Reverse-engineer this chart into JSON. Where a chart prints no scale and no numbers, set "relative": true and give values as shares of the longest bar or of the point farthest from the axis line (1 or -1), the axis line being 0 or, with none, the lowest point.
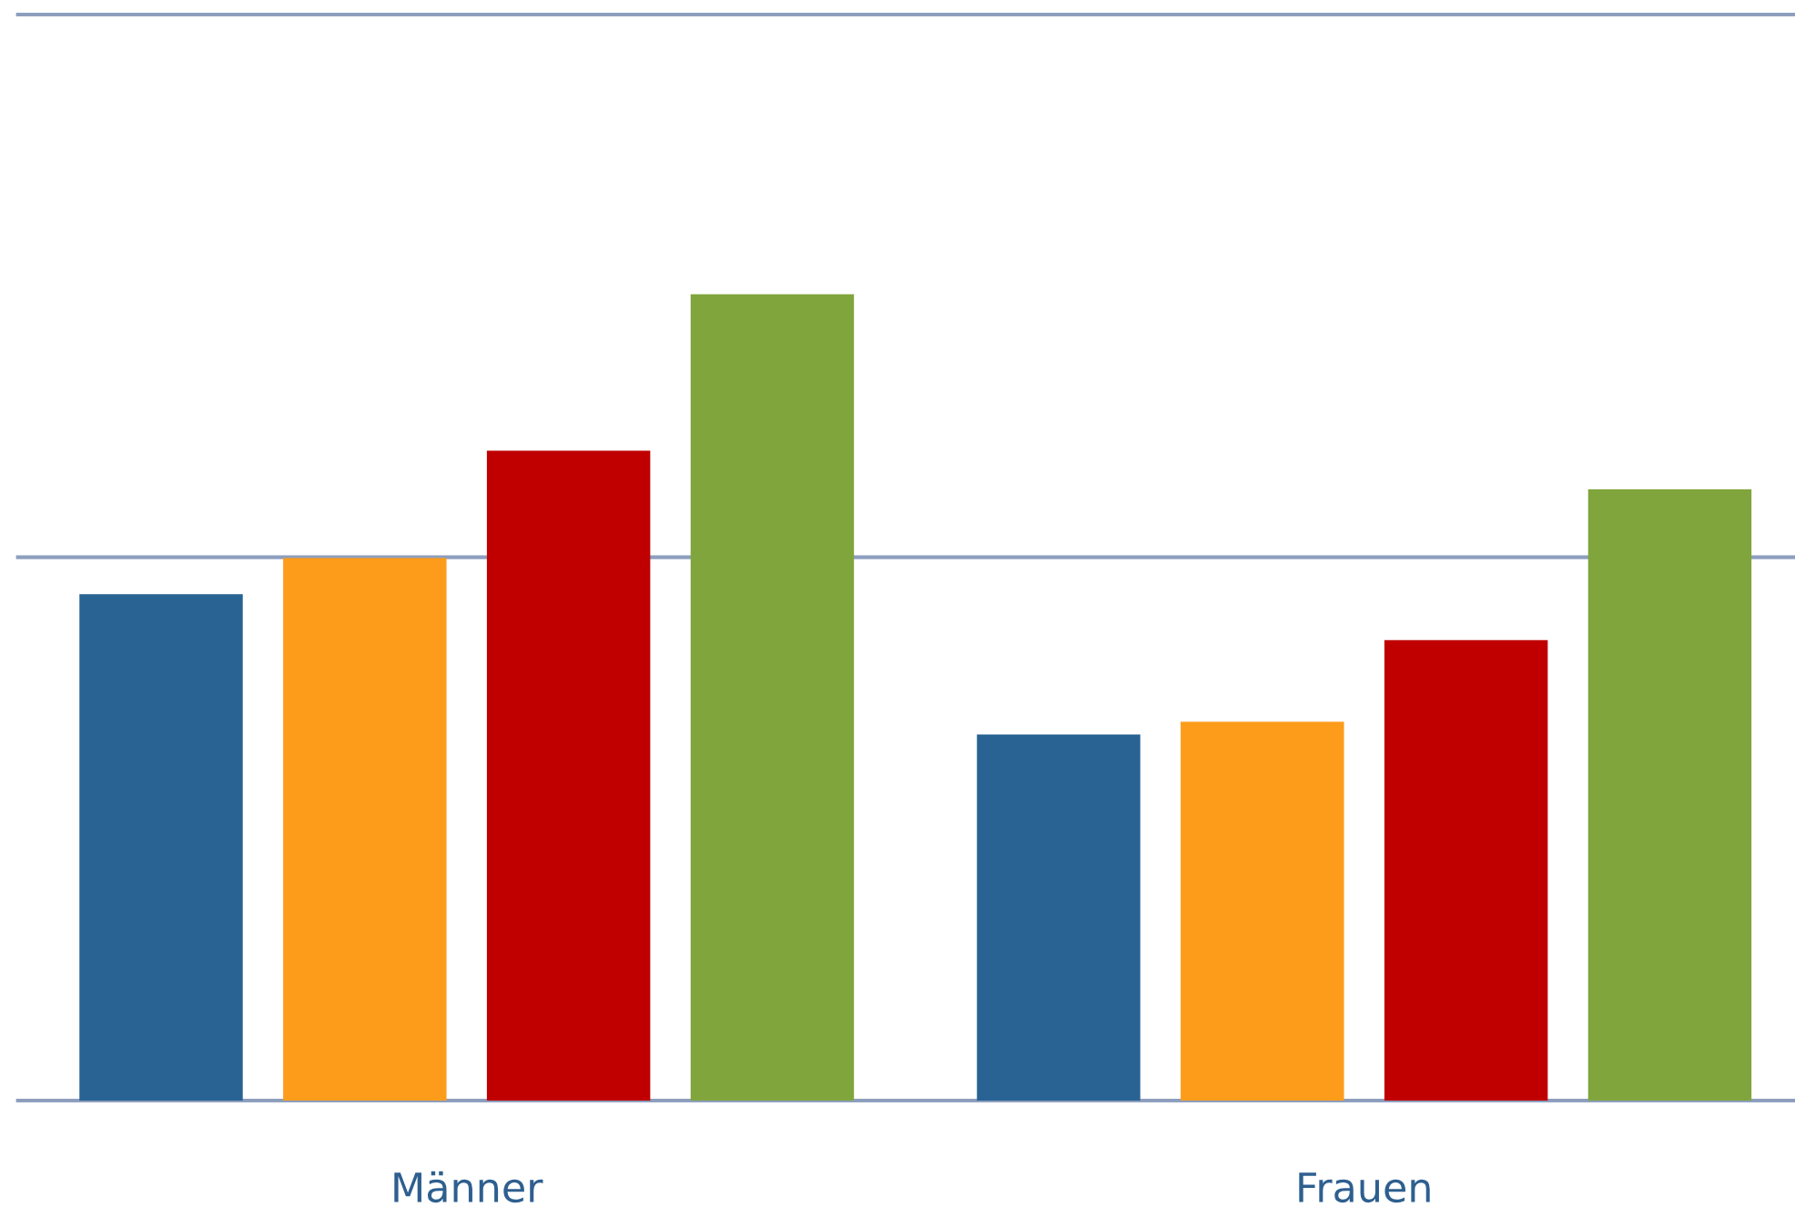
{
  "chart_data": {
    "type": "bar",
    "relative": true,
    "categories": [
      "Männer",
      "Frauen"
    ],
    "series": [
      {
        "color": "#286393",
        "values": [
          0.628,
          0.454
        ]
      },
      {
        "color": "#fd9c1b",
        "values": [
          0.673,
          0.47
        ]
      },
      {
        "color": "#c00000",
        "values": [
          0.806,
          0.571
        ]
      },
      {
        "color": "#80a53c",
        "values": [
          1,
          0.758
        ]
      }
    ],
    "ref_lines": [
      {
        "axis": "y",
        "value": 0.674,
        "color": "#8e9fbe"
      },
      {
        "axis": "y",
        "value": 1.347,
        "color": "#8e9fbe"
      }
    ],
    "legend": false
  }
}
